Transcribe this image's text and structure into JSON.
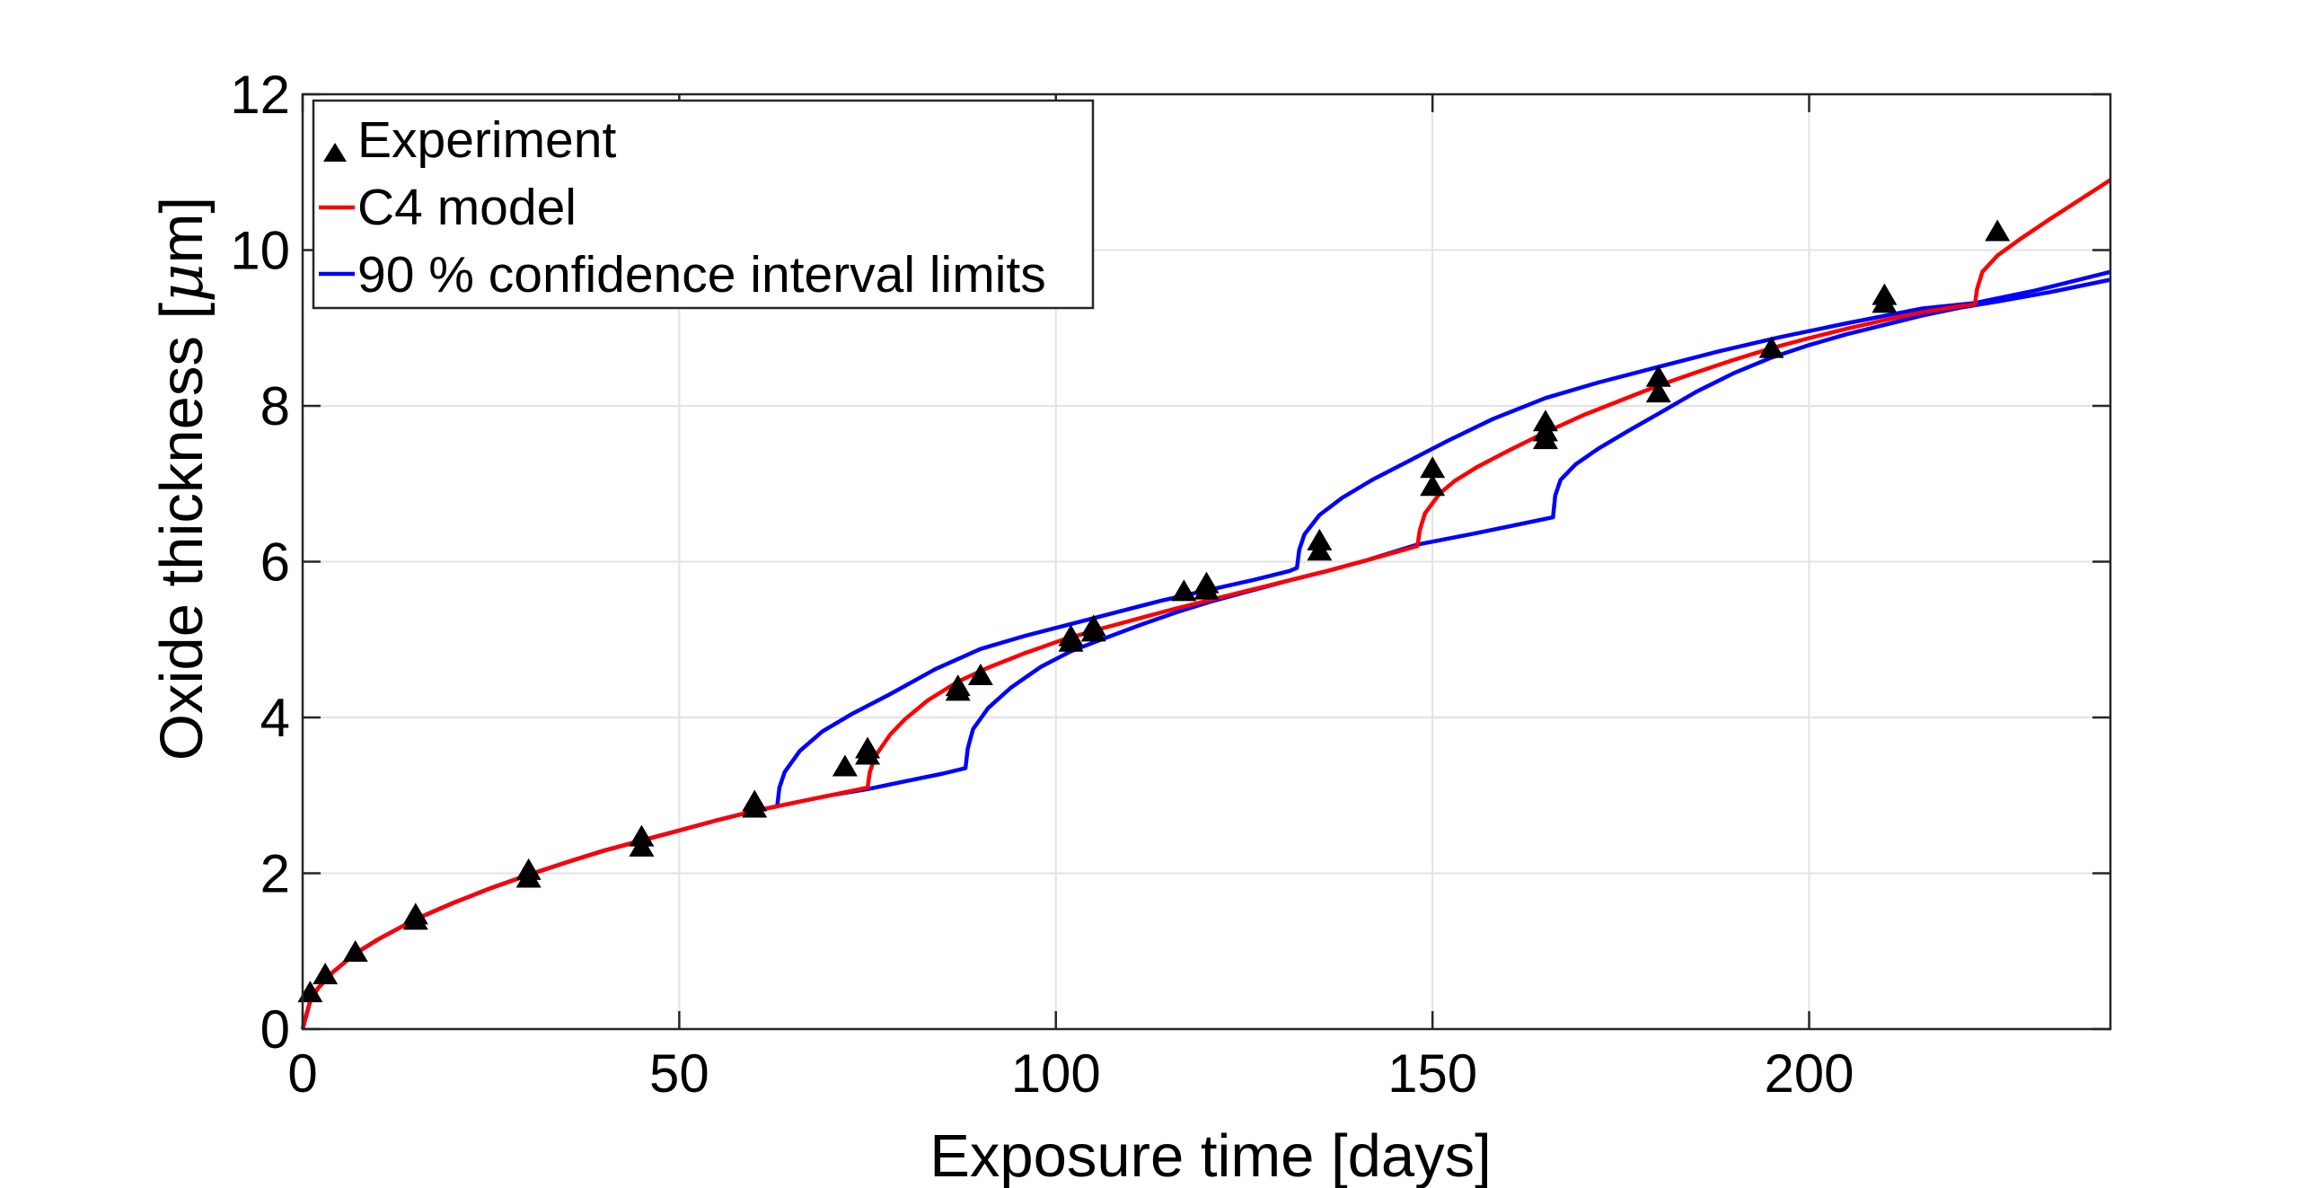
{
  "chart_data": {
    "type": "line",
    "title": "",
    "xlabel": "Exposure time [days]",
    "ylabel_prefix": "Oxide thickness [",
    "ylabel_mu": "μ",
    "ylabel_suffix": "m]",
    "xlim": [
      0,
      240
    ],
    "ylim": [
      0,
      12
    ],
    "xticks": [
      0,
      50,
      100,
      150,
      200
    ],
    "yticks": [
      0,
      2,
      4,
      6,
      8,
      10,
      12
    ],
    "xtick_labels": [
      "0",
      "50",
      "100",
      "150",
      "200"
    ],
    "ytick_labels": [
      "0",
      "2",
      "4",
      "6",
      "8",
      "10",
      "12"
    ],
    "grid": true,
    "legend_position": "top-left",
    "legend": {
      "experiment": "Experiment",
      "model": "C4 model",
      "ci": "90 % confidence interval limits"
    },
    "colors": {
      "experiment": "#000000",
      "model": "#ff0000",
      "ci": "#0000ff"
    },
    "series": [
      {
        "name": "Experiment",
        "kind": "scatter",
        "marker": "triangle",
        "points": [
          [
            1,
            0.45
          ],
          [
            3,
            0.68
          ],
          [
            7,
            0.97
          ],
          [
            15,
            1.38
          ],
          [
            15,
            1.45
          ],
          [
            30,
            1.92
          ],
          [
            30,
            2.02
          ],
          [
            45,
            2.32
          ],
          [
            45,
            2.45
          ],
          [
            60,
            2.82
          ],
          [
            60,
            2.9
          ],
          [
            72,
            3.35
          ],
          [
            75,
            3.5
          ],
          [
            75,
            3.58
          ],
          [
            87,
            4.32
          ],
          [
            87,
            4.38
          ],
          [
            90,
            4.52
          ],
          [
            102,
            4.95
          ],
          [
            102,
            5.02
          ],
          [
            105,
            5.08
          ],
          [
            105,
            5.15
          ],
          [
            117,
            5.6
          ],
          [
            120,
            5.62
          ],
          [
            120,
            5.7
          ],
          [
            135,
            6.12
          ],
          [
            135,
            6.25
          ],
          [
            150,
            6.95
          ],
          [
            150,
            7.18
          ],
          [
            165,
            7.55
          ],
          [
            165,
            7.65
          ],
          [
            165,
            7.78
          ],
          [
            180,
            8.15
          ],
          [
            180,
            8.35
          ],
          [
            195,
            8.72
          ],
          [
            210,
            9.3
          ],
          [
            210,
            9.4
          ],
          [
            225,
            10.22
          ]
        ]
      },
      {
        "name": "C4 model",
        "kind": "line",
        "points": [
          [
            0,
            0.0
          ],
          [
            1,
            0.36
          ],
          [
            2,
            0.52
          ],
          [
            4,
            0.73
          ],
          [
            7,
            0.97
          ],
          [
            10,
            1.15
          ],
          [
            15,
            1.41
          ],
          [
            20,
            1.62
          ],
          [
            25,
            1.81
          ],
          [
            30,
            1.98
          ],
          [
            35,
            2.14
          ],
          [
            40,
            2.29
          ],
          [
            45,
            2.42
          ],
          [
            50,
            2.55
          ],
          [
            55,
            2.68
          ],
          [
            60,
            2.8
          ],
          [
            65,
            2.9
          ],
          [
            70,
            3.0
          ],
          [
            75,
            3.1
          ],
          [
            75.3,
            3.3
          ],
          [
            76,
            3.5
          ],
          [
            78,
            3.78
          ],
          [
            80,
            3.98
          ],
          [
            83,
            4.22
          ],
          [
            87,
            4.46
          ],
          [
            91,
            4.64
          ],
          [
            96,
            4.83
          ],
          [
            101,
            5.0
          ],
          [
            106,
            5.14
          ],
          [
            111,
            5.27
          ],
          [
            116,
            5.4
          ],
          [
            121,
            5.52
          ],
          [
            126,
            5.64
          ],
          [
            131,
            5.76
          ],
          [
            136,
            5.88
          ],
          [
            141,
            6.01
          ],
          [
            148,
            6.2
          ],
          [
            148.3,
            6.4
          ],
          [
            149,
            6.62
          ],
          [
            151,
            6.88
          ],
          [
            153,
            7.04
          ],
          [
            156,
            7.22
          ],
          [
            160,
            7.42
          ],
          [
            165,
            7.66
          ],
          [
            170,
            7.88
          ],
          [
            175,
            8.07
          ],
          [
            180,
            8.26
          ],
          [
            185,
            8.43
          ],
          [
            190,
            8.59
          ],
          [
            195,
            8.74
          ],
          [
            200,
            8.87
          ],
          [
            205,
            8.99
          ],
          [
            210,
            9.1
          ],
          [
            215,
            9.2
          ],
          [
            220,
            9.28
          ],
          [
            222,
            9.3
          ],
          [
            222.3,
            9.5
          ],
          [
            223,
            9.72
          ],
          [
            225,
            9.93
          ],
          [
            228,
            10.14
          ],
          [
            232,
            10.4
          ],
          [
            236,
            10.65
          ],
          [
            240,
            10.9
          ]
        ]
      },
      {
        "name": "90 % confidence interval limits (upper)",
        "kind": "line",
        "points": [
          [
            0,
            0.0
          ],
          [
            1,
            0.36
          ],
          [
            2,
            0.52
          ],
          [
            4,
            0.73
          ],
          [
            7,
            0.97
          ],
          [
            10,
            1.15
          ],
          [
            15,
            1.41
          ],
          [
            20,
            1.62
          ],
          [
            25,
            1.81
          ],
          [
            30,
            1.98
          ],
          [
            35,
            2.14
          ],
          [
            40,
            2.29
          ],
          [
            45,
            2.42
          ],
          [
            50,
            2.55
          ],
          [
            55,
            2.68
          ],
          [
            60,
            2.8
          ],
          [
            63,
            2.86
          ],
          [
            63.3,
            3.1
          ],
          [
            64,
            3.3
          ],
          [
            66,
            3.57
          ],
          [
            69,
            3.82
          ],
          [
            73,
            4.05
          ],
          [
            78,
            4.3
          ],
          [
            84,
            4.62
          ],
          [
            90,
            4.88
          ],
          [
            96,
            5.05
          ],
          [
            102,
            5.2
          ],
          [
            108,
            5.35
          ],
          [
            114,
            5.5
          ],
          [
            120,
            5.63
          ],
          [
            126,
            5.76
          ],
          [
            131,
            5.88
          ],
          [
            132,
            5.92
          ],
          [
            132.3,
            6.15
          ],
          [
            133,
            6.35
          ],
          [
            135,
            6.6
          ],
          [
            138,
            6.82
          ],
          [
            142,
            7.05
          ],
          [
            147,
            7.3
          ],
          [
            152,
            7.55
          ],
          [
            158,
            7.83
          ],
          [
            165,
            8.1
          ],
          [
            172,
            8.3
          ],
          [
            180,
            8.5
          ],
          [
            188,
            8.7
          ],
          [
            196,
            8.88
          ],
          [
            205,
            9.06
          ],
          [
            215,
            9.25
          ],
          [
            222,
            9.32
          ],
          [
            230,
            9.48
          ],
          [
            240,
            9.72
          ]
        ]
      },
      {
        "name": "90 % confidence interval limits (lower)",
        "kind": "line",
        "points": [
          [
            0,
            0.0
          ],
          [
            1,
            0.36
          ],
          [
            2,
            0.52
          ],
          [
            4,
            0.73
          ],
          [
            7,
            0.97
          ],
          [
            10,
            1.15
          ],
          [
            15,
            1.41
          ],
          [
            20,
            1.62
          ],
          [
            25,
            1.81
          ],
          [
            30,
            1.98
          ],
          [
            35,
            2.14
          ],
          [
            40,
            2.29
          ],
          [
            45,
            2.42
          ],
          [
            50,
            2.55
          ],
          [
            55,
            2.68
          ],
          [
            60,
            2.8
          ],
          [
            65,
            2.9
          ],
          [
            70,
            3.0
          ],
          [
            75,
            3.08
          ],
          [
            80,
            3.18
          ],
          [
            85,
            3.28
          ],
          [
            88,
            3.35
          ],
          [
            88.3,
            3.6
          ],
          [
            89,
            3.85
          ],
          [
            91,
            4.12
          ],
          [
            94,
            4.38
          ],
          [
            98,
            4.65
          ],
          [
            102,
            4.85
          ],
          [
            106,
            5.0
          ],
          [
            111,
            5.18
          ],
          [
            116,
            5.35
          ],
          [
            121,
            5.5
          ],
          [
            126,
            5.63
          ],
          [
            131,
            5.76
          ],
          [
            136,
            5.88
          ],
          [
            141,
            6.01
          ],
          [
            148,
            6.22
          ],
          [
            155,
            6.35
          ],
          [
            160,
            6.45
          ],
          [
            166,
            6.57
          ],
          [
            166.3,
            6.85
          ],
          [
            167,
            7.05
          ],
          [
            169,
            7.25
          ],
          [
            172,
            7.45
          ],
          [
            176,
            7.68
          ],
          [
            180,
            7.9
          ],
          [
            185,
            8.18
          ],
          [
            190,
            8.42
          ],
          [
            195,
            8.62
          ],
          [
            200,
            8.78
          ],
          [
            205,
            8.92
          ],
          [
            210,
            9.04
          ],
          [
            215,
            9.16
          ],
          [
            220,
            9.26
          ],
          [
            225,
            9.34
          ],
          [
            232,
            9.46
          ],
          [
            240,
            9.62
          ]
        ]
      }
    ]
  }
}
